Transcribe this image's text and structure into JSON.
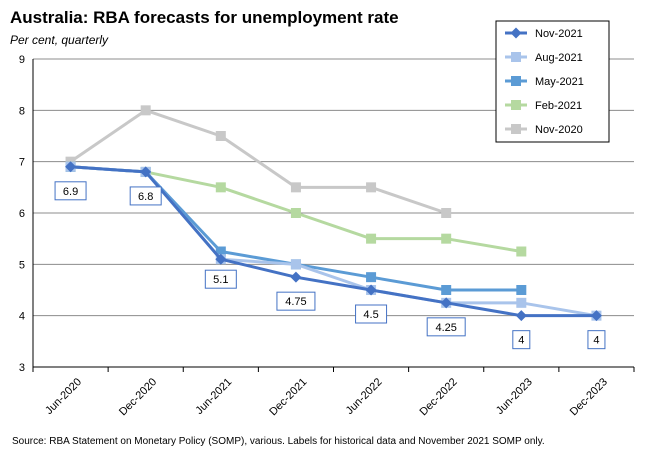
{
  "chart_data": {
    "type": "line",
    "title": "Australia: RBA forecasts for unemployment rate",
    "subtitle": "Per cent, quarterly",
    "source": "Source: RBA Statement on Monetary Policy (SOMP), various. Labels for historical data and November 2021 SOMP only.",
    "ylim": [
      3,
      9
    ],
    "yticks": [
      "3",
      "4",
      "5",
      "6",
      "7",
      "8",
      "9"
    ],
    "categories": [
      "Jun-2020",
      "Dec-2020",
      "Jun-2021",
      "Dec-2021",
      "Jun-2022",
      "Dec-2022",
      "Jun-2023",
      "Dec-2023"
    ],
    "grid": true,
    "legend_position": "top-right",
    "series": [
      {
        "name": "Nov-2020",
        "color": "#c8c8c8",
        "marker": "square",
        "values": [
          7.0,
          8.0,
          7.5,
          6.5,
          6.5,
          6.0,
          null,
          null
        ]
      },
      {
        "name": "Feb-2021",
        "color": "#b5d9a0",
        "marker": "square",
        "values": [
          6.9,
          6.8,
          6.5,
          6.0,
          5.5,
          5.5,
          5.25,
          null
        ]
      },
      {
        "name": "May-2021",
        "color": "#5b9bd5",
        "marker": "square",
        "values": [
          6.9,
          6.8,
          5.25,
          5.0,
          4.75,
          4.5,
          4.5,
          null
        ]
      },
      {
        "name": "Aug-2021",
        "color": "#a9c4eb",
        "marker": "square",
        "values": [
          6.9,
          6.8,
          5.1,
          5.0,
          4.5,
          4.25,
          4.25,
          4.0
        ]
      },
      {
        "name": "Nov-2021",
        "color": "#4472c4",
        "marker": "diamond",
        "values": [
          6.9,
          6.8,
          5.1,
          4.75,
          4.5,
          4.25,
          4.0,
          4.0
        ]
      }
    ],
    "legend_order": [
      "Nov-2021",
      "Aug-2021",
      "May-2021",
      "Feb-2021",
      "Nov-2020"
    ],
    "data_labels": [
      {
        "text": "6.9",
        "category": "Jun-2020",
        "value": 6.9
      },
      {
        "text": "6.8",
        "category": "Dec-2020",
        "value": 6.8
      },
      {
        "text": "5.1",
        "category": "Jun-2021",
        "value": 5.1
      },
      {
        "text": "4.75",
        "category": "Dec-2021",
        "value": 4.75
      },
      {
        "text": "4.5",
        "category": "Jun-2022",
        "value": 4.5
      },
      {
        "text": "4.25",
        "category": "Dec-2022",
        "value": 4.25
      },
      {
        "text": "4",
        "category": "Jun-2023",
        "value": 4
      },
      {
        "text": "4",
        "category": "Dec-2023",
        "value": 4
      }
    ]
  }
}
